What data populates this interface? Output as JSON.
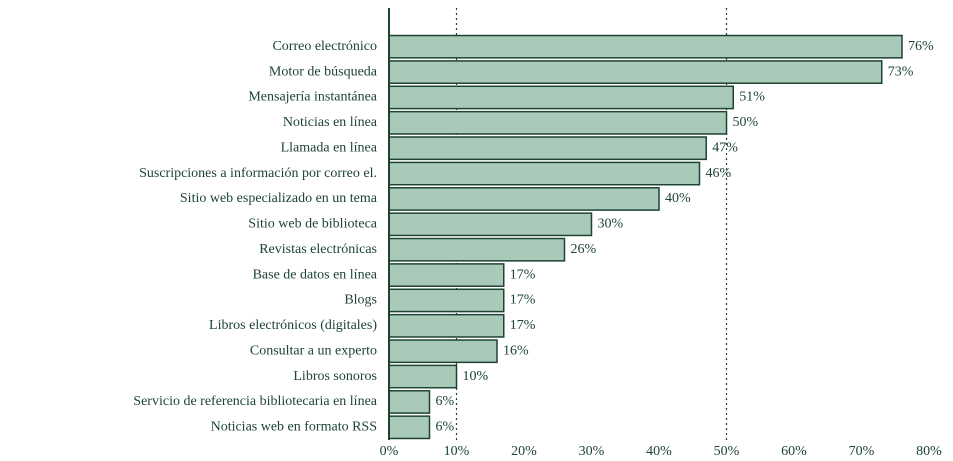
{
  "chart_data": {
    "type": "barh",
    "categories": [
      "Correo electrónico",
      "Motor de búsqueda",
      "Mensajería instantánea",
      "Noticias en línea",
      "Llamada en línea",
      "Suscripciones a información por correo el.",
      "Sitio web especializado en un tema",
      "Sitio web de biblioteca",
      "Revistas electrónicas",
      "Base de datos en línea",
      "Blogs",
      "Libros electrónicos (digitales)",
      "Consultar a un experto",
      "Libros sonoros",
      "Servicio de referencia bibliotecaria en línea",
      "Noticias web en formato RSS"
    ],
    "values": [
      76,
      73,
      51,
      50,
      47,
      46,
      40,
      30,
      26,
      17,
      17,
      17,
      16,
      10,
      6,
      6
    ],
    "value_labels": [
      "76%",
      "73%",
      "51%",
      "50%",
      "47%",
      "46%",
      "40%",
      "30%",
      "26%",
      "17%",
      "17%",
      "17%",
      "16%",
      "10%",
      "6%",
      "6%"
    ],
    "color": "#a9c9b9",
    "xlim": [
      0,
      80
    ],
    "xticks": [
      {
        "value": 0,
        "label": "0%"
      },
      {
        "value": 10,
        "label": "10%"
      },
      {
        "value": 20,
        "label": "20%"
      },
      {
        "value": 30,
        "label": "30%"
      },
      {
        "value": 40,
        "label": "40%"
      },
      {
        "value": 50,
        "label": "50%"
      },
      {
        "value": 60,
        "label": "60%"
      },
      {
        "value": 70,
        "label": "70%"
      },
      {
        "value": 80,
        "label": "80%"
      }
    ],
    "reference_lines": [
      10,
      50
    ]
  }
}
